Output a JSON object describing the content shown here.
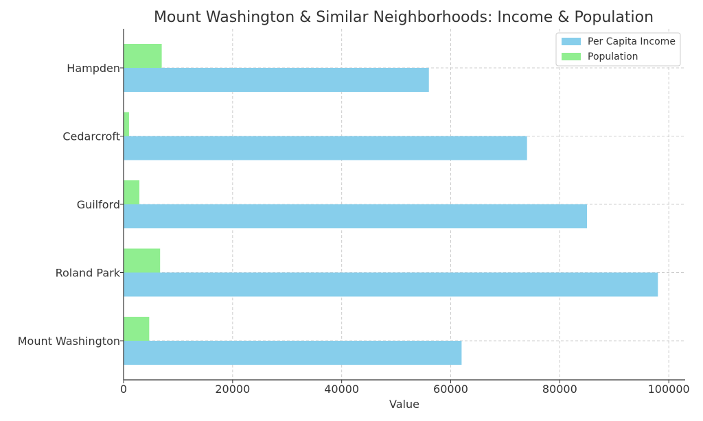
{
  "chart_data": {
    "type": "bar",
    "orientation": "horizontal",
    "title": "Mount Washington & Similar Neighborhoods: Income & Population",
    "xlabel": "Value",
    "ylabel": "",
    "categories": [
      "Mount Washington",
      "Roland Park",
      "Guilford",
      "Cedarcroft",
      "Hampden"
    ],
    "series": [
      {
        "name": "Per Capita Income",
        "color": "#87ceeb",
        "values": [
          62000,
          98000,
          85000,
          74000,
          56000
        ]
      },
      {
        "name": "Population",
        "color": "#90ee90",
        "values": [
          4700,
          6700,
          2900,
          1000,
          7000
        ]
      }
    ],
    "xlim": [
      0,
      103000
    ],
    "xticks": [
      0,
      20000,
      40000,
      60000,
      80000,
      100000
    ],
    "xtick_labels": [
      "0",
      "20000",
      "40000",
      "60000",
      "80000",
      "100000"
    ],
    "grid": true,
    "legend_position": "top-right"
  }
}
